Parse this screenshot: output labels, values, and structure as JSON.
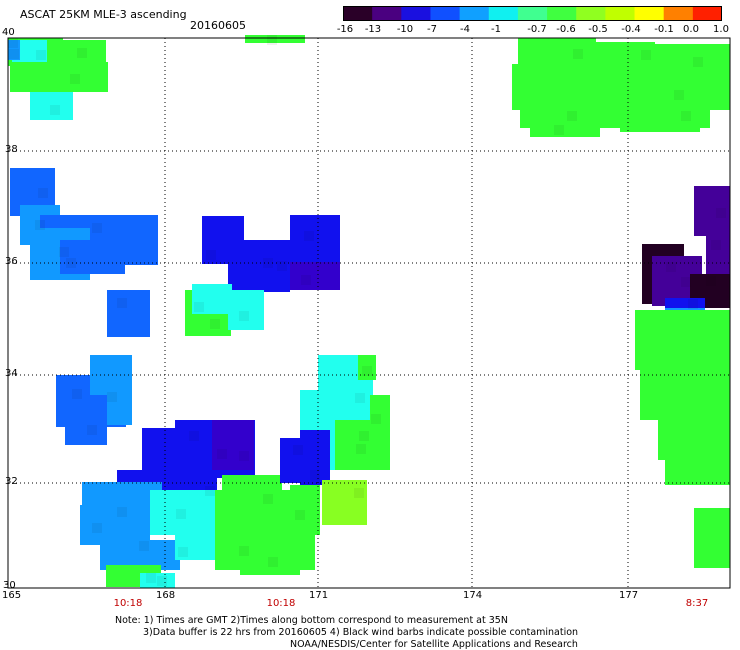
{
  "title": "ASCAT 25KM MLE-3 ascending",
  "date": "20160605",
  "colorbar": {
    "labels": [
      "-16",
      "-13",
      "-10",
      "-7",
      "-4",
      "-1",
      "-0.7",
      "-0.6",
      "-0.5",
      "-0.4",
      "-0.1",
      "0.0",
      "1.0"
    ],
    "colors": [
      "#2a0028",
      "#4a0080",
      "#1a10e0",
      "#1050ff",
      "#10a0ff",
      "#10f0f0",
      "#40ff90",
      "#40ff40",
      "#90ff20",
      "#c0ff00",
      "#ffff00",
      "#ff8000",
      "#ff2000"
    ]
  },
  "lat_labels": [
    "40",
    "38",
    "36",
    "34",
    "32",
    "30"
  ],
  "lon_labels": [
    "165",
    "168",
    "171",
    "174",
    "177"
  ],
  "time_labels": [
    "10:18",
    "10:18",
    "8:37"
  ],
  "notes": [
    "Note: 1) Times are GMT 2)Times along bottom correspond to measurement at 35N",
    "3)Data buffer is 22 hrs from 20160605 4) Black wind barbs indicate possible contamination",
    "NOAA/NESDIS/Center for Satellite Applications and Research"
  ],
  "colors": {
    "green": "#33ff33",
    "green_dark": "#22ee44",
    "lime": "#88ff22",
    "cyan": "#22ffee",
    "sky": "#1199ff",
    "blue": "#1166ff",
    "royal": "#1111ee",
    "indigo": "#3300cc",
    "violet": "#440099",
    "black_purple": "#220022"
  }
}
